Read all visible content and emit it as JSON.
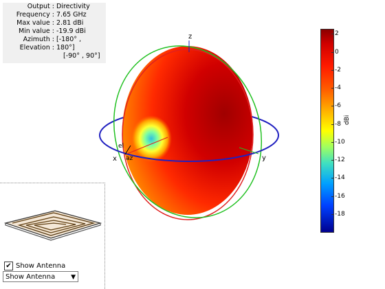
{
  "info": {
    "rows": [
      {
        "key": "Output",
        "value": "Directivity"
      },
      {
        "key": "Frequency",
        "value": "7.65 GHz"
      },
      {
        "key": "Max value",
        "value": "2.81 dBi"
      },
      {
        "key": "Min value",
        "value": "-19.9 dBi"
      },
      {
        "key": "Azimuth",
        "value": "[-180° ,"
      },
      {
        "key": "Elevation",
        "value": "180°]"
      }
    ],
    "extra": "[-90° , 90°]"
  },
  "axes": {
    "x": "x",
    "y": "y",
    "z": "z",
    "el": "el",
    "az": "az"
  },
  "colorbar": {
    "ticks": [
      "2",
      "0",
      "-2",
      "-4",
      "-6",
      "-8",
      "-10",
      "-12",
      "-14",
      "-16",
      "-18"
    ],
    "unit": "dBi"
  },
  "antenna_panel": {
    "show_label": "Show Antenna",
    "checked": true,
    "select_value": "Show Antenna"
  },
  "colors": {
    "red_circle": "#e02020",
    "green_circle": "#20c020",
    "blue_circle": "#2020c0"
  }
}
